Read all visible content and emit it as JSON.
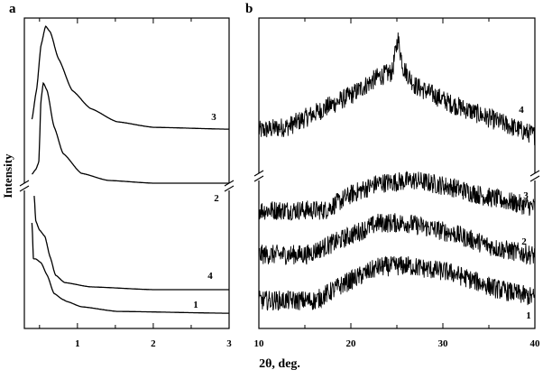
{
  "chart_data": [
    {
      "type": "line",
      "panel_label": "a",
      "xlabel": "2θ, deg.",
      "ylabel": "Intensity",
      "xlim": [
        0.3,
        3
      ],
      "ylim": [
        0,
        100
      ],
      "y_axis_break": true,
      "xticks": [
        1,
        2,
        3
      ],
      "xtick_labels": [
        "1",
        "2",
        "3"
      ],
      "minor_xticks": [
        0.5,
        1.5,
        2.5
      ],
      "grid": false,
      "noise": 0,
      "series": [
        {
          "name": "3",
          "x": [
            0.4,
            0.46,
            0.52,
            0.58,
            0.64,
            0.75,
            0.93,
            1.17,
            1.52,
            2.0,
            3.0
          ],
          "y": [
            67.4,
            76.7,
            91.3,
            97.4,
            95.6,
            86.9,
            76.7,
            70.9,
            66.6,
            64.8,
            64.2
          ]
        },
        {
          "name": "2",
          "x": [
            0.4,
            0.45,
            0.49,
            0.52,
            0.55,
            0.6,
            0.69,
            0.81,
            1.05,
            1.4,
            2.0,
            3.0
          ],
          "y": [
            49.7,
            51.2,
            53.5,
            73.8,
            79.1,
            76.7,
            65.1,
            56.4,
            50.0,
            47.7,
            46.8,
            46.8
          ]
        },
        {
          "name": "4",
          "x": [
            0.43,
            0.45,
            0.5,
            0.57,
            0.64,
            0.71,
            0.83,
            1.17,
            2.0,
            3.0
          ],
          "y": [
            42.7,
            34.6,
            31.7,
            29.7,
            23.0,
            17.2,
            14.8,
            13.4,
            12.5,
            12.5
          ]
        },
        {
          "name": "1",
          "x": [
            0.4,
            0.42,
            0.45,
            0.52,
            0.6,
            0.69,
            0.81,
            0.86,
            1.05,
            1.52,
            3.0
          ],
          "y": [
            34.0,
            22.4,
            22.4,
            21.2,
            17.2,
            11.3,
            9.3,
            8.7,
            7.0,
            5.5,
            4.9
          ]
        }
      ]
    },
    {
      "type": "line",
      "panel_label": "b",
      "xlabel": "2θ, deg.",
      "ylabel": "Intensity",
      "xlim": [
        10,
        40
      ],
      "ylim": [
        0,
        100
      ],
      "y_axis_break": true,
      "xticks": [
        10,
        20,
        30,
        40
      ],
      "xtick_labels": [
        "10",
        "20",
        "30",
        "40"
      ],
      "minor_xticks": [
        15,
        25,
        35
      ],
      "grid": false,
      "noise": 3.2,
      "series": [
        {
          "name": "4",
          "x": [
            10,
            13.2,
            16.2,
            20.1,
            23,
            24.5,
            25.1,
            25.7,
            27,
            30.9,
            34.8,
            40
          ],
          "y": [
            63.7,
            65.1,
            69.5,
            75.3,
            81.1,
            82.6,
            93.6,
            84,
            78.2,
            72.4,
            68,
            62.2
          ]
        },
        {
          "name": "3",
          "x": [
            10,
            17.2,
            20.1,
            23,
            27,
            30.9,
            34.8,
            40
          ],
          "y": [
            38.1,
            38.1,
            43.3,
            46.8,
            47.7,
            45.6,
            42.4,
            39
          ]
        },
        {
          "name": "2",
          "x": [
            10,
            15.2,
            19.1,
            23,
            26,
            30.9,
            35.8,
            40
          ],
          "y": [
            23.8,
            23.8,
            28.8,
            34,
            34,
            30.8,
            25.9,
            23.5
          ]
        },
        {
          "name": "1",
          "x": [
            10,
            16.2,
            19.1,
            23,
            26,
            30.9,
            35.8,
            40
          ],
          "y": [
            9,
            9,
            14.2,
            19.8,
            20.3,
            18,
            12.8,
            9.9
          ]
        }
      ]
    }
  ],
  "xlabel_shared": "2θ, deg.",
  "ylabel_shared": "Intensity"
}
